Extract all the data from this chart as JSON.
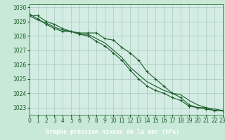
{
  "title": "Graphe pression niveau de la mer (hPa)",
  "background_color": "#c8e8d8",
  "plot_bg_color": "#d4ede4",
  "grid_color": "#a8c8bc",
  "line_color": "#1a5c2a",
  "label_bg_color": "#2a6b3a",
  "label_text_color": "#ffffff",
  "xlim": [
    0,
    23
  ],
  "ylim": [
    1022.5,
    1030.2
  ],
  "yticks": [
    1023,
    1024,
    1025,
    1026,
    1027,
    1028,
    1029,
    1030
  ],
  "xticks": [
    0,
    1,
    2,
    3,
    4,
    5,
    6,
    7,
    8,
    9,
    10,
    11,
    12,
    13,
    14,
    15,
    16,
    17,
    18,
    19,
    20,
    21,
    22,
    23
  ],
  "series1": [
    1029.4,
    1029.4,
    1029.0,
    1028.8,
    1028.5,
    1028.3,
    1028.2,
    1028.2,
    1028.2,
    1027.8,
    1027.7,
    1027.2,
    1026.8,
    1026.3,
    1025.5,
    1025.0,
    1024.5,
    1024.0,
    1023.7,
    1023.2,
    1023.0,
    1023.0,
    1022.8,
    1022.8
  ],
  "series2": [
    1029.4,
    1029.1,
    1028.9,
    1028.6,
    1028.4,
    1028.3,
    1028.1,
    1028.1,
    1027.8,
    1027.5,
    1027.0,
    1026.5,
    1025.8,
    1025.3,
    1024.8,
    1024.5,
    1024.2,
    1024.0,
    1023.9,
    1023.5,
    1023.2,
    1023.0,
    1022.9,
    1022.8
  ],
  "series3": [
    1029.5,
    1029.2,
    1028.8,
    1028.5,
    1028.3,
    1028.3,
    1028.1,
    1028.0,
    1027.6,
    1027.3,
    1026.8,
    1026.3,
    1025.6,
    1025.0,
    1024.5,
    1024.2,
    1024.0,
    1023.7,
    1023.5,
    1023.1,
    1023.0,
    1022.9,
    1022.8,
    1022.8
  ],
  "tick_fontsize": 5.5,
  "label_fontsize": 6.0
}
